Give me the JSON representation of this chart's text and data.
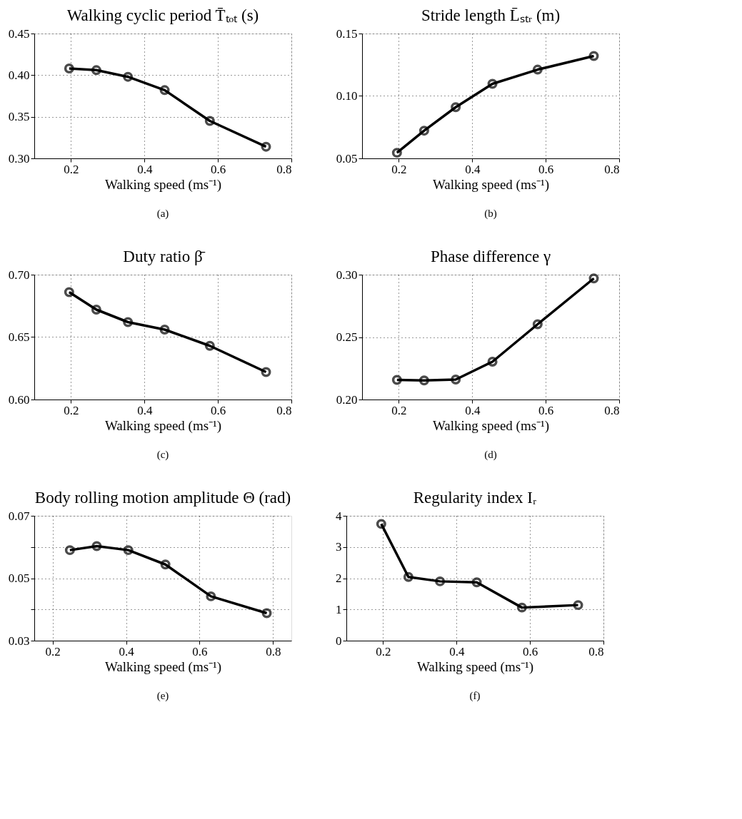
{
  "chart_data": [
    {
      "type": "line",
      "title": "Walking cyclic period T̄ₜₒₜ (s)",
      "xlabel": "Walking speed (ms⁻¹)",
      "annotations": [
        "(a)"
      ],
      "x": [
        0.195,
        0.269,
        0.355,
        0.455,
        0.578,
        0.731
      ],
      "series": [
        {
          "color": "#000000",
          "values": [
            0.408,
            0.406,
            0.398,
            0.382,
            0.345,
            0.314
          ]
        }
      ],
      "xlim": [
        0.1,
        0.8
      ],
      "xticks": [
        0.2,
        0.4,
        0.6,
        0.8
      ],
      "ylim": [
        0.3,
        0.45
      ],
      "yticks": [
        {
          "value": 0.3,
          "label": "0.30"
        },
        0.35,
        {
          "value": 0.4,
          "label": "0.40"
        },
        0.45
      ],
      "grid": true,
      "marker": "circle",
      "line_style": "solid"
    },
    {
      "type": "line",
      "title": "Stride length L̄ₛₜᵣ (m)",
      "xlabel": "Walking speed (ms⁻¹)",
      "annotations": [
        "(b)"
      ],
      "x": [
        0.195,
        0.269,
        0.355,
        0.455,
        0.578,
        0.731
      ],
      "series": [
        {
          "color": "#000000",
          "values": [
            0.0545,
            0.0722,
            0.091,
            0.1097,
            0.1211,
            0.132
          ]
        }
      ],
      "xlim": [
        0.1,
        0.8
      ],
      "xticks": [
        0.2,
        0.4,
        0.6,
        0.8
      ],
      "ylim": [
        0.05,
        0.15
      ],
      "yticks": [
        0.05,
        {
          "value": 0.1,
          "label": "0.10"
        },
        0.15
      ],
      "grid": true,
      "marker": "circle",
      "line_style": "solid"
    },
    {
      "type": "line",
      "title": "Duty ratio β̄",
      "xlabel": "Walking speed (ms⁻¹)",
      "annotations": [
        "(c)"
      ],
      "x": [
        0.195,
        0.269,
        0.355,
        0.455,
        0.578,
        0.731
      ],
      "series": [
        {
          "color": "#000000",
          "values": [
            0.686,
            0.672,
            0.662,
            0.656,
            0.643,
            0.622
          ]
        }
      ],
      "xlim": [
        0.1,
        0.8
      ],
      "xticks": [
        0.2,
        0.4,
        0.6,
        0.8
      ],
      "ylim": [
        0.6,
        0.7
      ],
      "yticks": [
        {
          "value": 0.6,
          "label": "0.60"
        },
        0.65,
        {
          "value": 0.7,
          "label": "0.70"
        }
      ],
      "grid": true,
      "marker": "circle",
      "line_style": "solid"
    },
    {
      "type": "line",
      "title": "Phase difference γ",
      "xlabel": "Walking speed (ms⁻¹)",
      "annotations": [
        "(d)"
      ],
      "x": [
        0.195,
        0.269,
        0.355,
        0.455,
        0.578,
        0.731
      ],
      "series": [
        {
          "color": "#000000",
          "values": [
            0.2157,
            0.2153,
            0.216,
            0.2303,
            0.2603,
            0.297
          ]
        }
      ],
      "xlim": [
        0.1,
        0.8
      ],
      "xticks": [
        0.2,
        0.4,
        0.6,
        0.8
      ],
      "ylim": [
        0.2,
        0.3
      ],
      "yticks": [
        {
          "value": 0.2,
          "label": "0.20"
        },
        0.25,
        {
          "value": 0.3,
          "label": "0.30"
        }
      ],
      "grid": true,
      "marker": "circle",
      "line_style": "solid"
    },
    {
      "type": "line",
      "title": "Body rolling motion amplitude Θ (rad)",
      "xlabel": "Walking speed (ms⁻¹)",
      "annotations": [
        "(e)"
      ],
      "x": [
        0.247,
        0.32,
        0.406,
        0.507,
        0.631,
        0.783
      ],
      "series": [
        {
          "color": "#000000",
          "values": [
            0.059,
            0.0603,
            0.059,
            0.0544,
            0.0442,
            0.0388
          ]
        }
      ],
      "xlim": [
        0.15,
        0.85
      ],
      "xticks": [
        0.2,
        0.4,
        0.6,
        0.8
      ],
      "ylim": [
        0.03,
        0.07
      ],
      "yticks": [
        0.03,
        {
          "value": 0.04,
          "label": null
        },
        0.05,
        {
          "value": 0.06,
          "label": null
        },
        0.07
      ],
      "grid": true,
      "marker": "circle",
      "line_style": "solid"
    },
    {
      "type": "line",
      "title": "Regularity index Iᵣ",
      "xlabel": "Walking speed (ms⁻¹)",
      "annotations": [
        "(f)"
      ],
      "x": [
        0.195,
        0.269,
        0.355,
        0.455,
        0.578,
        0.731
      ],
      "series": [
        {
          "color": "#000000",
          "values": [
            3.74,
            2.04,
            1.9,
            1.87,
            1.06,
            1.14
          ]
        }
      ],
      "xlim": [
        0.1,
        0.8
      ],
      "xticks": [
        0.2,
        0.4,
        0.6,
        0.8
      ],
      "ylim": [
        0,
        4
      ],
      "yticks": [
        0,
        1,
        2,
        3,
        4
      ],
      "grid": true,
      "marker": "circle",
      "line_style": "solid"
    }
  ]
}
